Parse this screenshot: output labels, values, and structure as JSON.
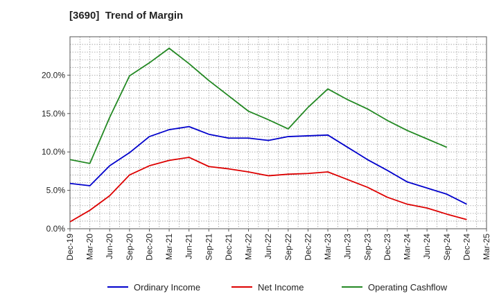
{
  "chart_data": {
    "type": "line",
    "title": "[3690]  Trend of Margin",
    "xlabel": "",
    "ylabel": "",
    "categories": [
      "Dec-19",
      "Mar-20",
      "Jun-20",
      "Sep-20",
      "Dec-20",
      "Mar-21",
      "Jun-21",
      "Sep-21",
      "Dec-21",
      "Mar-22",
      "Jun-22",
      "Sep-22",
      "Dec-22",
      "Mar-23",
      "Jun-23",
      "Sep-23",
      "Dec-23",
      "Mar-24",
      "Jun-24",
      "Sep-24",
      "Dec-24",
      "Mar-25"
    ],
    "ylim": [
      0,
      25
    ],
    "yticks": [
      0,
      5,
      10,
      15,
      20
    ],
    "ytick_labels": [
      "0.0%",
      "5.0%",
      "10.0%",
      "15.0%",
      "20.0%"
    ],
    "grid": true,
    "legend_position": "bottom",
    "series": [
      {
        "name": "Ordinary Income",
        "color": "#0000cc",
        "values": [
          5.9,
          5.6,
          8.2,
          9.9,
          12.0,
          12.9,
          13.3,
          12.3,
          11.8,
          11.8,
          11.5,
          12.0,
          12.1,
          12.2,
          10.6,
          9.0,
          7.6,
          6.1,
          5.3,
          4.5,
          3.2,
          null
        ]
      },
      {
        "name": "Net Income",
        "color": "#dd0000",
        "values": [
          0.9,
          2.4,
          4.3,
          7.0,
          8.2,
          8.9,
          9.3,
          8.1,
          7.8,
          7.4,
          6.9,
          7.1,
          7.2,
          7.4,
          6.4,
          5.4,
          4.1,
          3.2,
          2.7,
          1.9,
          1.2,
          null
        ]
      },
      {
        "name": "Operating Cashflow",
        "color": "#228822",
        "values": [
          9.0,
          8.5,
          14.5,
          19.9,
          21.6,
          23.5,
          21.5,
          19.3,
          17.3,
          15.3,
          14.2,
          13.0,
          15.8,
          18.2,
          16.8,
          15.6,
          14.1,
          12.8,
          11.7,
          10.6,
          null,
          null
        ]
      }
    ]
  }
}
